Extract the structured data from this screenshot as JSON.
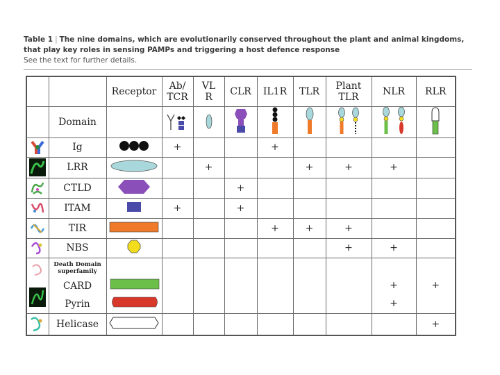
{
  "caption": {
    "label": "Table 1",
    "separator": "|",
    "title": "The nine domains, which are evolutionarily conserved throughout the plant and animal kingdoms, that play key roles in sensing PAMPs and triggering a host defence response",
    "note": "See the text for further details."
  },
  "table": {
    "receptor_header": "Receptor",
    "domain_header": "Domain",
    "columns": [
      {
        "line1": "Ab/",
        "line2": "TCR"
      },
      {
        "line1": "VL",
        "line2": "R"
      },
      {
        "line1": "CLR",
        "line2": ""
      },
      {
        "line1": "IL1R",
        "line2": ""
      },
      {
        "line1": "TLR",
        "line2": ""
      },
      {
        "line1": "Plant",
        "line2": "TLR"
      },
      {
        "line1": "NLR",
        "line2": ""
      },
      {
        "line1": "RLR",
        "line2": ""
      }
    ],
    "rows": [
      {
        "label": "Ig",
        "cells": [
          "+",
          "",
          "",
          "+",
          "",
          "",
          "",
          ""
        ]
      },
      {
        "label": "LRR",
        "cells": [
          "",
          "+",
          "",
          "",
          "+",
          "+",
          "+",
          ""
        ]
      },
      {
        "label": "CTLD",
        "cells": [
          "",
          "",
          "+",
          "",
          "",
          "",
          "",
          ""
        ]
      },
      {
        "label": "ITAM",
        "cells": [
          "+",
          "",
          "+",
          "",
          "",
          "",
          "",
          ""
        ]
      },
      {
        "label": "TIR",
        "cells": [
          "",
          "",
          "",
          "+",
          "+",
          "+",
          "",
          ""
        ]
      },
      {
        "label": "NBS",
        "cells": [
          "",
          "",
          "",
          "",
          "",
          "+",
          "+",
          ""
        ]
      }
    ],
    "death_domain": {
      "superfamily_line1": "Death Domain",
      "superfamily_line2": "superfamily",
      "card_label": "CARD",
      "pyrin_label": "Pyrin",
      "card_cells": [
        "",
        "",
        "",
        "",
        "",
        "",
        "+",
        "+"
      ],
      "pyrin_cells": [
        "",
        "",
        "",
        "",
        "",
        "",
        "+",
        ""
      ]
    },
    "helicase": {
      "label": "Helicase",
      "cells": [
        "",
        "",
        "",
        "",
        "",
        "",
        "",
        "+"
      ]
    }
  },
  "colors": {
    "ig_domain": "#111111",
    "lrr_domain": "#a8d8dc",
    "ctld_domain": "#8a4fb8",
    "itam_domain": "#4a4aa8",
    "tir_domain": "#ee7a2a",
    "nbs_domain": "#f2dc1c",
    "card_domain": "#6cc04a",
    "pyrin_domain": "#d8382a",
    "helicase_domain": "#ffffff"
  }
}
